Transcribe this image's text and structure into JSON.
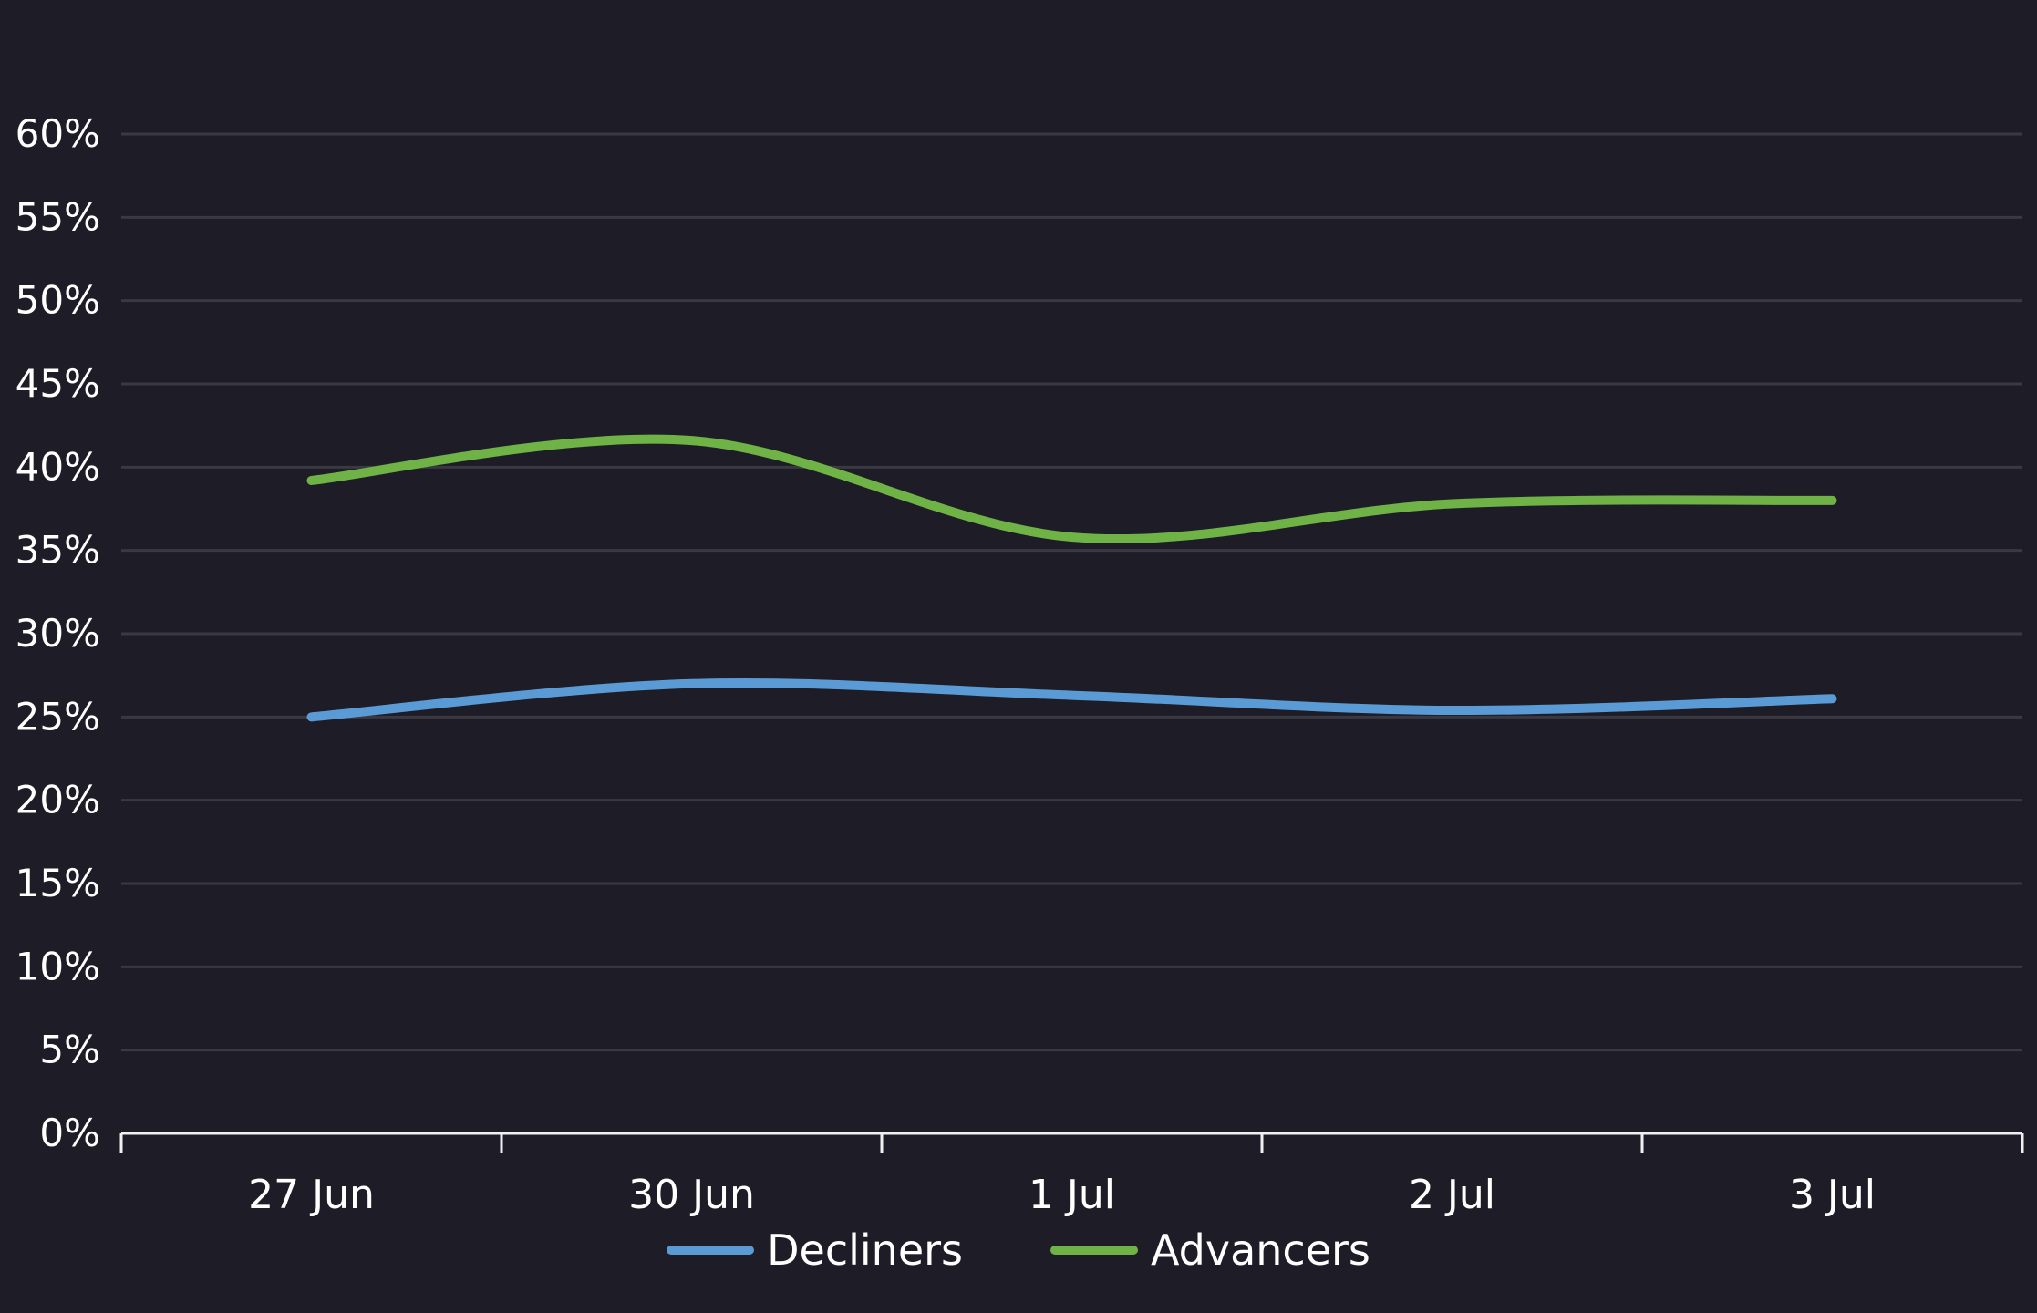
{
  "chart_data": {
    "type": "line",
    "title": "",
    "xlabel": "",
    "ylabel": "",
    "categories": [
      "27 Jun",
      "30 Jun",
      "1 Jul",
      "2 Jul",
      "3 Jul"
    ],
    "series": [
      {
        "name": "Decliners",
        "color": "#5B9BD5",
        "values": [
          25.0,
          27.0,
          26.3,
          25.4,
          26.1
        ]
      },
      {
        "name": "Advancers",
        "color": "#6FB347",
        "values": [
          39.2,
          41.6,
          35.8,
          37.8,
          38.0
        ]
      }
    ],
    "ylim": [
      0,
      60
    ],
    "y_tick_step": 5,
    "y_tick_suffix": "%",
    "grid": true,
    "smooth": true,
    "legend_position": "bottom"
  },
  "style": {
    "background_color": "#1E1D27",
    "grid_color": "#3A3942",
    "axis_color": "#F0F0F2",
    "label_color": "#FFFFFF"
  }
}
